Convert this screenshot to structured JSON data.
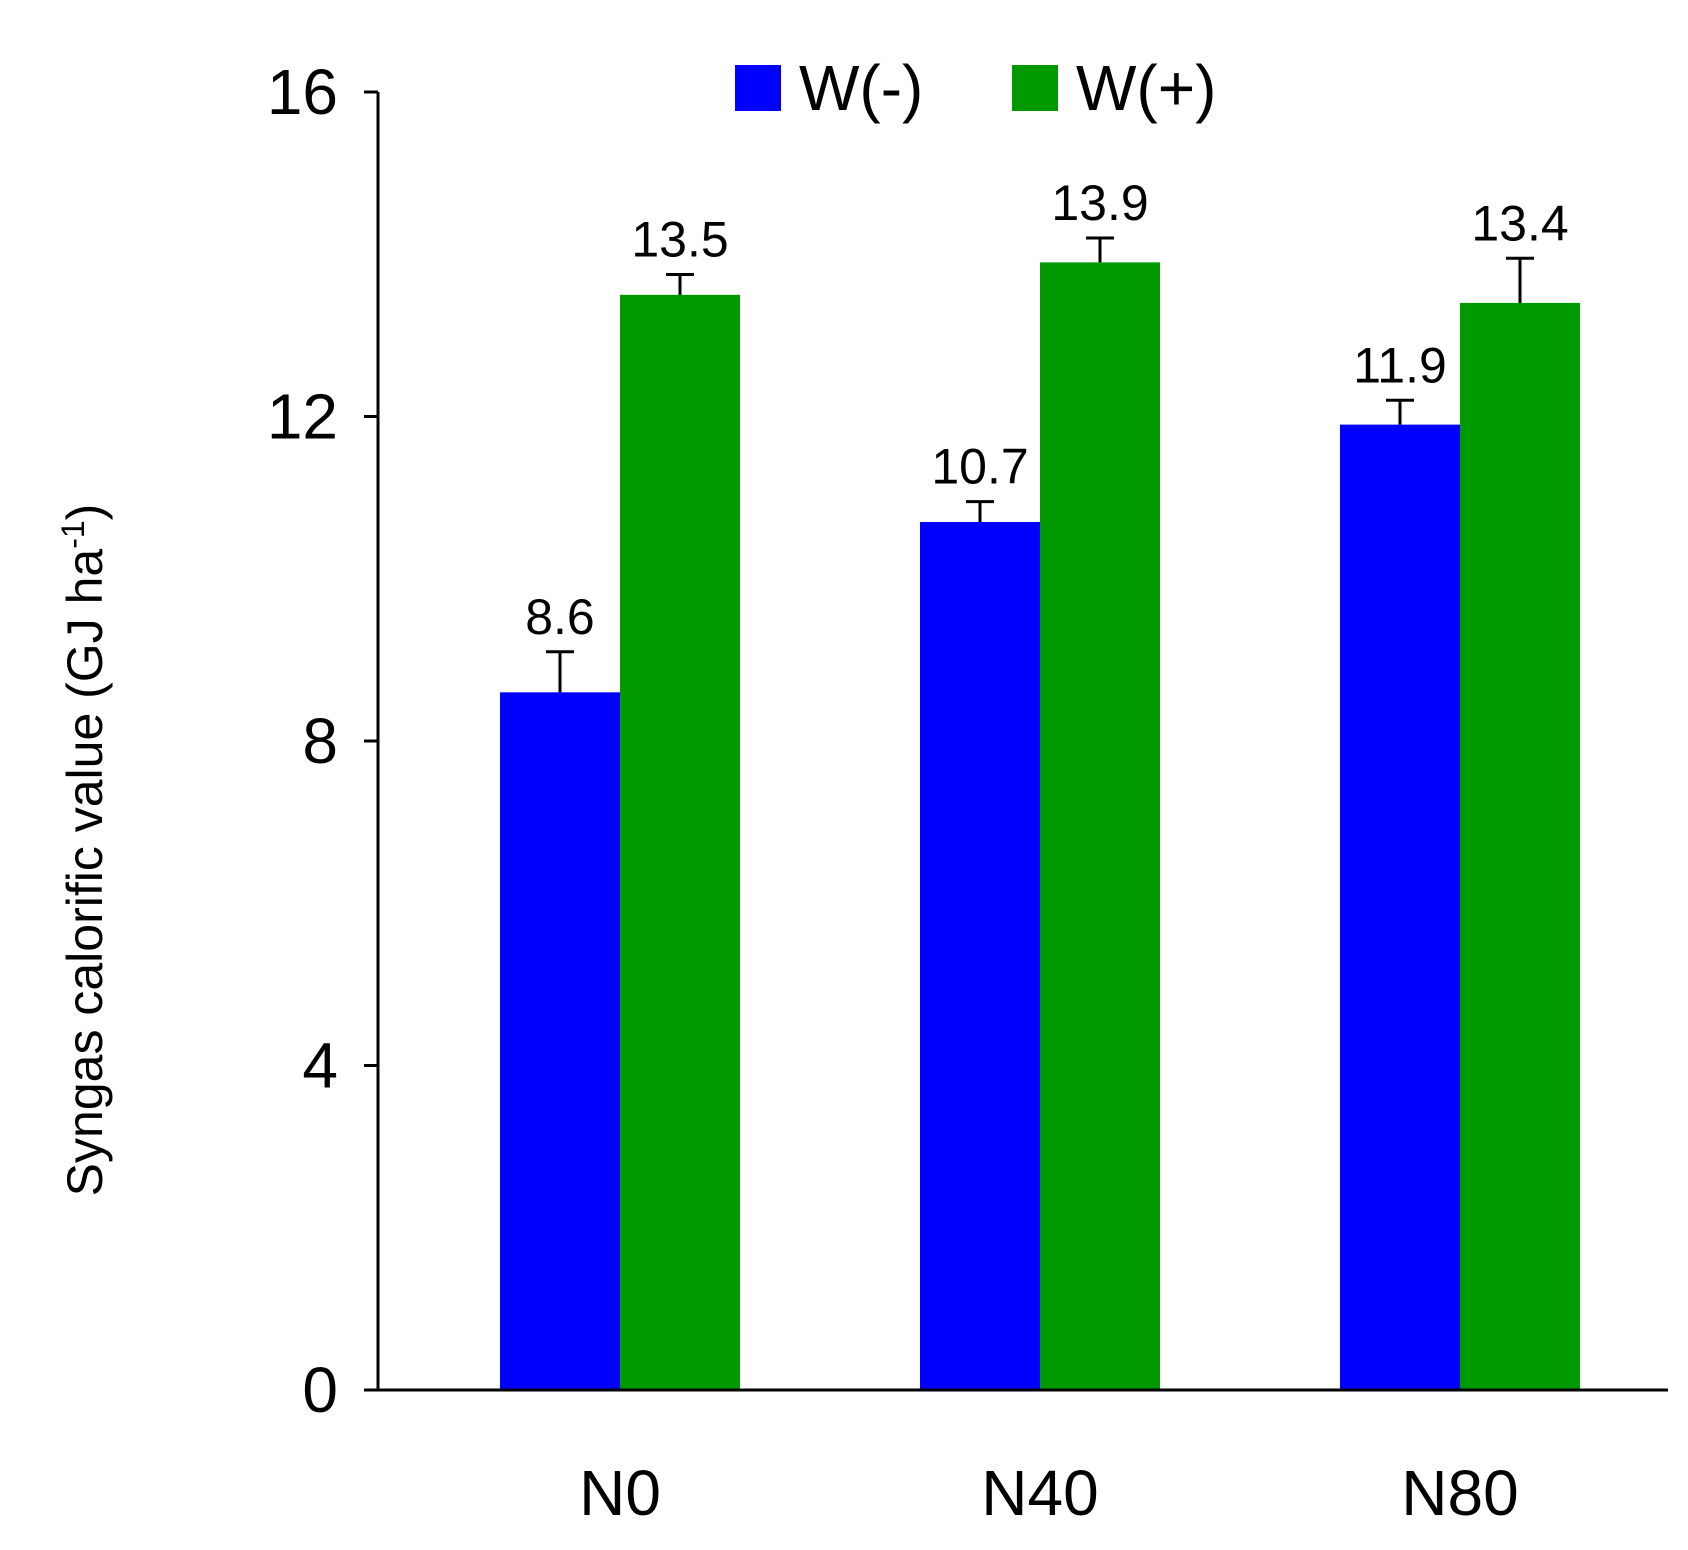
{
  "chart_data": {
    "type": "bar",
    "ylabel": "Syngas calorific value (GJ ha",
    "ylabel_superscript": "-1",
    "ylabel_suffix": ")",
    "ylim": [
      0,
      16
    ],
    "yticks": [
      "0",
      "4",
      "8",
      "12",
      "16"
    ],
    "categories": [
      "N0",
      "N40",
      "N80"
    ],
    "legend": {
      "position": "top-center"
    },
    "series": [
      {
        "name": "W(-)",
        "color": "#0000ff",
        "values": [
          8.6,
          10.7,
          11.9
        ],
        "labels": [
          "8.6",
          "10.7",
          "11.9"
        ],
        "error": [
          0.5,
          0.25,
          0.3
        ]
      },
      {
        "name": "W(+)",
        "color": "#009900",
        "values": [
          13.5,
          13.9,
          13.4
        ],
        "labels": [
          "13.5",
          "13.9",
          "13.4"
        ],
        "error": [
          0.25,
          0.3,
          0.55
        ]
      }
    ]
  }
}
